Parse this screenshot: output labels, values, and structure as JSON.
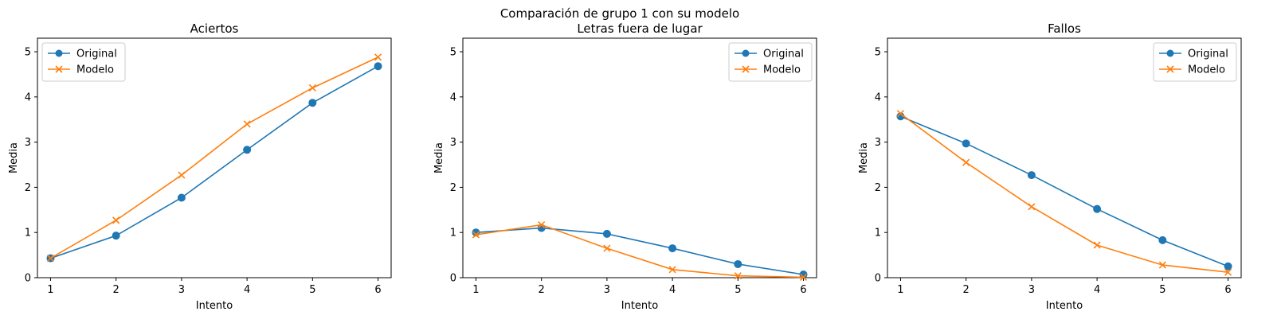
{
  "figure": {
    "suptitle": "Comparación de grupo 1 con su modelo"
  },
  "chart_data": [
    {
      "type": "line",
      "title": "Aciertos",
      "xlabel": "Intento",
      "ylabel": "Media",
      "x": [
        1,
        2,
        3,
        4,
        5,
        6
      ],
      "xlim": [
        0.8,
        6.2
      ],
      "ylim": [
        0,
        5.3
      ],
      "xticks": [
        1,
        2,
        3,
        4,
        5,
        6
      ],
      "yticks": [
        0,
        1,
        2,
        3,
        4,
        5
      ],
      "legend_position": "top-left",
      "grid": false,
      "series": [
        {
          "name": "Original",
          "values": [
            0.43,
            0.93,
            1.77,
            2.83,
            3.87,
            4.68
          ],
          "color": "#1f77b4",
          "marker": "circle"
        },
        {
          "name": "Modelo",
          "values": [
            0.43,
            1.27,
            2.27,
            3.4,
            4.2,
            4.88
          ],
          "color": "#ff7f0e",
          "marker": "x"
        }
      ]
    },
    {
      "type": "line",
      "title": "Letras fuera de lugar",
      "xlabel": "Intento",
      "ylabel": "Media",
      "x": [
        1,
        2,
        3,
        4,
        5,
        6
      ],
      "xlim": [
        0.8,
        6.2
      ],
      "ylim": [
        0,
        5.3
      ],
      "xticks": [
        1,
        2,
        3,
        4,
        5,
        6
      ],
      "yticks": [
        0,
        1,
        2,
        3,
        4,
        5
      ],
      "legend_position": "top-right",
      "grid": false,
      "series": [
        {
          "name": "Original",
          "values": [
            1.0,
            1.1,
            0.97,
            0.65,
            0.3,
            0.07
          ],
          "color": "#1f77b4",
          "marker": "circle"
        },
        {
          "name": "Modelo",
          "values": [
            0.95,
            1.17,
            0.65,
            0.18,
            0.04,
            0.01
          ],
          "color": "#ff7f0e",
          "marker": "x"
        }
      ]
    },
    {
      "type": "line",
      "title": "Fallos",
      "xlabel": "Intento",
      "ylabel": "Media",
      "x": [
        1,
        2,
        3,
        4,
        5,
        6
      ],
      "xlim": [
        0.8,
        6.2
      ],
      "ylim": [
        0,
        5.3
      ],
      "xticks": [
        1,
        2,
        3,
        4,
        5,
        6
      ],
      "yticks": [
        0,
        1,
        2,
        3,
        4,
        5
      ],
      "legend_position": "top-right",
      "grid": false,
      "series": [
        {
          "name": "Original",
          "values": [
            3.57,
            2.97,
            2.27,
            1.52,
            0.83,
            0.25
          ],
          "color": "#1f77b4",
          "marker": "circle"
        },
        {
          "name": "Modelo",
          "values": [
            3.63,
            2.55,
            1.57,
            0.72,
            0.28,
            0.12
          ],
          "color": "#ff7f0e",
          "marker": "x"
        }
      ]
    }
  ]
}
